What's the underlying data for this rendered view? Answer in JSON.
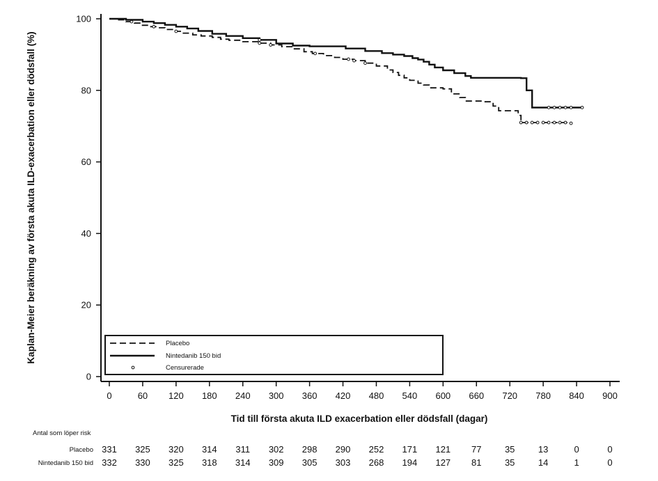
{
  "chart_data": {
    "type": "line",
    "xlabel": "Tid till första akuta ILD exacerbation eller dödsfall (dagar)",
    "ylabel": "Kaplan-Meier beräkning av första akuta ILD-exacerbation eller dödsfall (%)",
    "xlim": [
      0,
      900
    ],
    "ylim": [
      0,
      100
    ],
    "xticks": [
      0,
      60,
      120,
      180,
      240,
      300,
      360,
      420,
      480,
      540,
      600,
      660,
      720,
      780,
      840,
      900
    ],
    "yticks": [
      0,
      20,
      40,
      60,
      80,
      100
    ],
    "grid": false,
    "legend_position": "bottom-left",
    "legend": {
      "placebo": "Placebo",
      "nintedanib": "Nintedanib 150 bid",
      "censored": "Censurerade"
    },
    "series": [
      {
        "name": "Placebo",
        "style": "dashed",
        "points": [
          [
            0,
            100
          ],
          [
            15,
            99.7
          ],
          [
            30,
            99.2
          ],
          [
            45,
            98.8
          ],
          [
            55,
            98.2
          ],
          [
            70,
            97.8
          ],
          [
            85,
            97.5
          ],
          [
            100,
            97.0
          ],
          [
            115,
            96.5
          ],
          [
            130,
            96.0
          ],
          [
            150,
            95.5
          ],
          [
            165,
            95.2
          ],
          [
            185,
            94.8
          ],
          [
            200,
            94.3
          ],
          [
            215,
            94.0
          ],
          [
            240,
            93.6
          ],
          [
            270,
            93.2
          ],
          [
            290,
            92.7
          ],
          [
            310,
            92.2
          ],
          [
            330,
            91.6
          ],
          [
            350,
            90.8
          ],
          [
            365,
            90.3
          ],
          [
            385,
            89.7
          ],
          [
            405,
            89.2
          ],
          [
            420,
            88.7
          ],
          [
            440,
            88.3
          ],
          [
            460,
            87.6
          ],
          [
            480,
            86.8
          ],
          [
            500,
            85.7
          ],
          [
            510,
            85.0
          ],
          [
            520,
            84.2
          ],
          [
            530,
            83.5
          ],
          [
            540,
            82.8
          ],
          [
            555,
            82.0
          ],
          [
            565,
            81.5
          ],
          [
            575,
            80.7
          ],
          [
            600,
            80.4
          ],
          [
            615,
            79.0
          ],
          [
            630,
            78.0
          ],
          [
            640,
            77.0
          ],
          [
            670,
            76.8
          ],
          [
            690,
            75.6
          ],
          [
            700,
            74.3
          ],
          [
            735,
            73.0
          ],
          [
            740,
            71.0
          ],
          [
            830,
            70.8
          ]
        ],
        "censored_x": [
          40,
          80,
          120,
          270,
          290,
          370,
          430,
          440,
          460,
          740,
          750,
          760,
          770,
          780,
          790,
          800,
          810,
          820,
          830
        ]
      },
      {
        "name": "Nintedanib 150 bid",
        "style": "solid",
        "points": [
          [
            0,
            100
          ],
          [
            30,
            99.7
          ],
          [
            60,
            99.2
          ],
          [
            80,
            98.8
          ],
          [
            100,
            98.3
          ],
          [
            120,
            97.8
          ],
          [
            140,
            97.3
          ],
          [
            160,
            96.6
          ],
          [
            185,
            95.8
          ],
          [
            210,
            95.2
          ],
          [
            240,
            94.6
          ],
          [
            270,
            94.1
          ],
          [
            300,
            93.1
          ],
          [
            330,
            92.5
          ],
          [
            360,
            92.3
          ],
          [
            400,
            92.3
          ],
          [
            425,
            91.7
          ],
          [
            460,
            91.0
          ],
          [
            490,
            90.4
          ],
          [
            510,
            90.0
          ],
          [
            530,
            89.6
          ],
          [
            545,
            89.0
          ],
          [
            555,
            88.6
          ],
          [
            565,
            88.0
          ],
          [
            575,
            87.2
          ],
          [
            585,
            86.4
          ],
          [
            600,
            85.6
          ],
          [
            620,
            84.8
          ],
          [
            640,
            84.0
          ],
          [
            650,
            83.5
          ],
          [
            700,
            83.5
          ],
          [
            740,
            83.4
          ],
          [
            750,
            80.0
          ],
          [
            760,
            75.2
          ],
          [
            850,
            75.2
          ]
        ],
        "censored_x": [
          270,
          790,
          800,
          810,
          820,
          830,
          850
        ]
      }
    ]
  },
  "risk_table": {
    "title": "Antal som löper risk",
    "rows": [
      {
        "label": "Placebo",
        "values": [
          "331",
          "325",
          "320",
          "314",
          "311",
          "302",
          "298",
          "290",
          "252",
          "171",
          "121",
          "77",
          "35",
          "13",
          "0",
          "0"
        ]
      },
      {
        "label": "Nintedanib 150 bid",
        "values": [
          "332",
          "330",
          "325",
          "318",
          "314",
          "309",
          "305",
          "303",
          "268",
          "194",
          "127",
          "81",
          "35",
          "14",
          "1",
          "0"
        ]
      }
    ]
  }
}
